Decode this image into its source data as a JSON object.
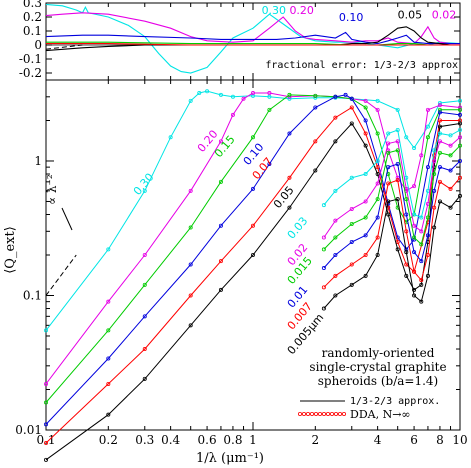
{
  "chart_data": [
    {
      "type": "line",
      "title": "",
      "xscale": "log",
      "xlim": [
        0.1,
        10
      ],
      "ylim": [
        -0.25,
        0.3
      ],
      "yticks": [
        0.3,
        0.2,
        0.1,
        0,
        -0.1,
        -0.2
      ],
      "ytick_labels": [
        "0.3",
        "0.2",
        "0.1",
        "0",
        "-0.1",
        "-0.2"
      ],
      "annotation": "fractional error: 1/3-2/3 approx",
      "labels": [
        {
          "text": "0.30",
          "color": "#00e5e5",
          "x": 1.1,
          "y": 0.22
        },
        {
          "text": "0.20",
          "color": "#e600e6",
          "x": 1.5,
          "y": 0.22
        },
        {
          "text": "0.10",
          "color": "#0000dd",
          "x": 2.6,
          "y": 0.17
        },
        {
          "text": "0.05",
          "color": "#000000",
          "x": 5.0,
          "y": 0.19
        },
        {
          "text": "0.02",
          "color": "#e600e6",
          "x": 7.3,
          "y": 0.19
        }
      ],
      "series": [
        {
          "color": "#00e5e5",
          "x": [
            0.1,
            0.12,
            0.14,
            0.15,
            0.155,
            0.16,
            0.2,
            0.25,
            0.3,
            0.35,
            0.4,
            0.45,
            0.5,
            0.6,
            0.7,
            0.8,
            1,
            1.2,
            1.4,
            1.7,
            2,
            2.5,
            3,
            3.5,
            4,
            5,
            6,
            7,
            8,
            10
          ],
          "y": [
            0.29,
            0.28,
            0.25,
            0.23,
            0.27,
            0.23,
            0.2,
            0.14,
            0.06,
            -0.06,
            -0.15,
            -0.19,
            -0.2,
            -0.16,
            -0.05,
            0.05,
            0.12,
            0.22,
            0.15,
            0.06,
            0.03,
            0.02,
            0.02,
            0.01,
            0,
            -0.02,
            0.01,
            0,
            0.02,
            0.01
          ]
        },
        {
          "color": "#e600e6",
          "x": [
            0.1,
            0.12,
            0.15,
            0.2,
            0.3,
            0.4,
            0.5,
            0.6,
            0.8,
            1,
            1.2,
            1.4,
            1.6,
            1.8,
            2,
            2.5,
            3,
            3.5,
            4,
            4.5,
            5,
            6,
            6.5,
            7,
            7.5,
            8,
            9,
            10
          ],
          "y": [
            0.21,
            0.22,
            0.23,
            0.22,
            0.17,
            0.12,
            0.06,
            0.03,
            0.02,
            0.03,
            0.12,
            0.2,
            0.1,
            0.05,
            0.04,
            0.03,
            0.02,
            0.03,
            0.03,
            0.05,
            0.02,
            0.01,
            0.06,
            0.13,
            0.05,
            0.02,
            0.01,
            0.01
          ]
        },
        {
          "color": "#0000dd",
          "x": [
            0.1,
            0.15,
            0.2,
            0.3,
            0.5,
            0.7,
            1,
            1.3,
            1.6,
            2,
            2.5,
            2.8,
            3,
            3.5,
            4,
            4.5,
            5,
            5.5,
            6,
            7,
            8,
            10
          ],
          "y": [
            0.06,
            0.07,
            0.07,
            0.06,
            0.05,
            0.04,
            0.04,
            0.04,
            0.05,
            0.07,
            0.05,
            0.09,
            0.04,
            0.02,
            0.01,
            0.03,
            0.05,
            0.07,
            0.02,
            0.01,
            0.01,
            0.01
          ]
        },
        {
          "color": "#000000",
          "x": [
            0.1,
            0.15,
            0.2,
            0.3,
            0.5,
            1,
            1.5,
            2,
            2.5,
            3,
            3.5,
            4,
            4.5,
            5,
            5.5,
            6,
            6.5,
            7,
            8,
            9,
            10
          ],
          "y": [
            -0.04,
            -0.02,
            -0.01,
            0,
            0,
            0,
            0,
            0,
            0,
            0.01,
            0.01,
            0.02,
            0.07,
            0.12,
            0.13,
            0.1,
            0.05,
            0.02,
            0.01,
            0,
            0
          ]
        },
        {
          "color": "#00cc00",
          "x": [
            0.1,
            0.2,
            0.5,
            1,
            2,
            3,
            4,
            5,
            6,
            7,
            8,
            10
          ],
          "y": [
            0.02,
            0.02,
            0.01,
            0.01,
            0.01,
            0,
            0,
            0.01,
            0.01,
            0,
            0,
            0
          ]
        },
        {
          "color": "#ff0000",
          "x": [
            0.1,
            0.2,
            0.5,
            1,
            2,
            3,
            4,
            5,
            6,
            7,
            8,
            10
          ],
          "y": [
            0.01,
            0.01,
            0,
            0,
            0,
            0,
            0,
            0,
            0,
            0,
            0,
            0
          ]
        }
      ],
      "dashed_zero": {
        "x": [
          0.1,
          0.15
        ],
        "y": [
          -0.03,
          0
        ]
      }
    },
    {
      "type": "line",
      "xscale": "log",
      "yscale": "log",
      "xlim": [
        0.1,
        10
      ],
      "ylim": [
        0.01,
        4
      ],
      "xlabel": "1/λ (μm⁻¹)",
      "ylabel": "⟨Q_ext⟩",
      "xticks": [
        0.1,
        0.2,
        0.4,
        0.6,
        0.8,
        1,
        2,
        4,
        6,
        8,
        10
      ],
      "xtick_labels": [
        "0.1",
        "0.2",
        "0.4",
        "0.6",
        "0.8",
        "1",
        "2",
        "4",
        "6",
        "8",
        "10"
      ],
      "xtick_labels_extra": [
        "0.3"
      ],
      "yticks": [
        0.01,
        0.1,
        1
      ],
      "ytick_labels": [
        "0.01",
        "0.1",
        "1"
      ],
      "legend_title": [
        "randomly-oriented",
        "single-crystal graphite",
        "spheroids (b/a=1.4)"
      ],
      "legend_entries": [
        "1/3-2/3 approx.",
        "DDA, N→∞"
      ],
      "legend_dda_color": "#ff0000",
      "slope_label": "∝ λ⁻²",
      "series": [
        {
          "name": "0.30",
          "color": "#00e5e5",
          "x": [
            0.1,
            0.2,
            0.3,
            0.4,
            0.5,
            0.55,
            0.6,
            0.7,
            0.8,
            1,
            1.2,
            1.5,
            2,
            2.5,
            3,
            4,
            5,
            5.5,
            6,
            7,
            8,
            10
          ],
          "y": [
            0.055,
            0.22,
            0.6,
            1.5,
            2.8,
            3.2,
            3.3,
            3.1,
            3.0,
            3.05,
            3.0,
            2.9,
            2.95,
            2.95,
            2.9,
            2.8,
            2.4,
            1.5,
            1.25,
            1.8,
            2.7,
            2.8
          ]
        },
        {
          "name": "0.20",
          "color": "#e600e6",
          "x": [
            0.1,
            0.2,
            0.3,
            0.5,
            0.7,
            0.8,
            0.9,
            1,
            1.2,
            1.5,
            2,
            2.5,
            3,
            3.5,
            4,
            4.5,
            5,
            5.5,
            6,
            6.5,
            7,
            8,
            10
          ],
          "y": [
            0.022,
            0.09,
            0.2,
            0.6,
            1.4,
            2.2,
            2.9,
            3.2,
            3.2,
            3.0,
            3.05,
            3.0,
            2.9,
            2.8,
            2.4,
            1.2,
            0.75,
            0.6,
            0.65,
            1.1,
            2.4,
            2.6,
            2.5
          ]
        },
        {
          "name": "0.15",
          "color": "#00cc00",
          "x": [
            0.1,
            0.2,
            0.3,
            0.5,
            0.7,
            1,
            1.2,
            1.5,
            2,
            2.5,
            3,
            3.5,
            4,
            4.5,
            5,
            5.5,
            6,
            7,
            8,
            10
          ],
          "y": [
            0.016,
            0.055,
            0.12,
            0.32,
            0.7,
            1.5,
            2.4,
            3.1,
            3.05,
            3.0,
            2.9,
            2.5,
            1.6,
            0.8,
            0.45,
            0.35,
            0.4,
            1.5,
            2.4,
            2.4
          ]
        },
        {
          "name": "0.10",
          "color": "#0000dd",
          "x": [
            0.1,
            0.2,
            0.3,
            0.5,
            0.7,
            1,
            1.2,
            1.5,
            2,
            2.5,
            2.8,
            3,
            3.5,
            4,
            4.5,
            5,
            5.5,
            6,
            7,
            8,
            10
          ],
          "y": [
            0.011,
            0.034,
            0.07,
            0.17,
            0.33,
            0.62,
            0.95,
            1.6,
            2.5,
            3.0,
            3.1,
            2.9,
            2.0,
            1.0,
            0.48,
            0.27,
            0.22,
            0.26,
            0.9,
            2.3,
            2.2
          ]
        },
        {
          "name": "0.07",
          "color": "#ff0000",
          "x": [
            0.1,
            0.2,
            0.3,
            0.5,
            0.7,
            1,
            1.5,
            2,
            2.5,
            3,
            3.5,
            4,
            4.5,
            5,
            5.5,
            6,
            7,
            7.5,
            8,
            10
          ],
          "y": [
            0.008,
            0.022,
            0.04,
            0.1,
            0.18,
            0.33,
            0.75,
            1.4,
            2.1,
            2.5,
            1.6,
            0.9,
            0.45,
            0.25,
            0.17,
            0.15,
            0.35,
            1.1,
            2.0,
            2.0
          ]
        },
        {
          "name": "0.05",
          "color": "#000000",
          "x": [
            0.1,
            0.2,
            0.3,
            0.5,
            0.7,
            1,
            1.5,
            2,
            2.5,
            3,
            3.5,
            4,
            4.5,
            5,
            5.5,
            6,
            6.5,
            7,
            7.5,
            8,
            10
          ],
          "y": [
            0.006,
            0.013,
            0.024,
            0.06,
            0.11,
            0.2,
            0.45,
            0.85,
            1.4,
            1.9,
            1.3,
            0.8,
            0.4,
            0.22,
            0.14,
            0.11,
            0.12,
            0.25,
            0.9,
            1.8,
            1.9
          ]
        },
        {
          "name": "0.03",
          "color": "#00e5e5",
          "x": [
            2.2,
            2.5,
            3,
            3.5,
            4,
            4.5,
            5,
            5.5,
            6,
            6.5,
            7,
            7.5,
            8,
            9,
            10
          ],
          "y": [
            0.47,
            0.6,
            0.75,
            0.8,
            1.0,
            1.6,
            1.7,
            0.75,
            0.4,
            0.38,
            0.6,
            1.2,
            1.6,
            1.55,
            1.7
          ]
        },
        {
          "name": "0.02",
          "color": "#e600e6",
          "x": [
            2.2,
            2.5,
            3,
            3.5,
            4,
            4.5,
            5,
            5.5,
            6,
            6.5,
            7,
            7.5,
            8,
            9,
            10
          ],
          "y": [
            0.27,
            0.36,
            0.44,
            0.5,
            0.68,
            1.35,
            1.4,
            0.62,
            0.33,
            0.3,
            0.48,
            1.0,
            1.4,
            1.3,
            1.5
          ]
        },
        {
          "name": "0.015",
          "color": "#00cc00",
          "x": [
            2.2,
            2.5,
            3,
            3.5,
            4,
            4.5,
            5,
            5.5,
            6,
            6.5,
            7,
            7.5,
            8,
            9,
            10
          ],
          "y": [
            0.22,
            0.27,
            0.34,
            0.38,
            0.52,
            1.15,
            1.2,
            0.52,
            0.27,
            0.24,
            0.38,
            0.8,
            1.15,
            1.1,
            1.3
          ]
        },
        {
          "name": "0.01",
          "color": "#0000dd",
          "x": [
            2.2,
            2.5,
            3,
            3.5,
            4,
            4.5,
            5,
            5.5,
            6,
            6.5,
            7,
            7.5,
            8,
            9,
            10
          ],
          "y": [
            0.16,
            0.2,
            0.25,
            0.28,
            0.38,
            0.9,
            0.95,
            0.4,
            0.21,
            0.18,
            0.28,
            0.6,
            0.9,
            0.85,
            1.0
          ]
        },
        {
          "name": "0.007",
          "color": "#ff0000",
          "x": [
            2.2,
            2.5,
            3,
            3.5,
            4,
            4.5,
            5,
            5.5,
            6,
            6.5,
            7,
            7.5,
            8,
            9,
            10
          ],
          "y": [
            0.115,
            0.14,
            0.17,
            0.2,
            0.27,
            0.68,
            0.72,
            0.3,
            0.15,
            0.13,
            0.2,
            0.45,
            0.7,
            0.62,
            0.75
          ]
        },
        {
          "name": "0.005μm",
          "color": "#000000",
          "x": [
            2.2,
            2.5,
            3,
            3.5,
            4,
            4.5,
            5,
            5.5,
            6,
            6.5,
            7,
            7.5,
            8,
            9,
            10
          ],
          "y": [
            0.08,
            0.1,
            0.12,
            0.14,
            0.2,
            0.5,
            0.52,
            0.21,
            0.1,
            0.09,
            0.14,
            0.32,
            0.5,
            0.45,
            0.55
          ]
        }
      ],
      "labels": [
        {
          "text": "0.30",
          "color": "#00e5e5",
          "x": 0.28,
          "y": 0.55,
          "rot": -50
        },
        {
          "text": "0.20",
          "color": "#e600e6",
          "x": 0.57,
          "y": 1.15,
          "rot": -50
        },
        {
          "text": "0.15",
          "color": "#00cc00",
          "x": 0.69,
          "y": 1.05,
          "rot": -50
        },
        {
          "text": "0.10",
          "color": "#0000dd",
          "x": 0.95,
          "y": 0.92,
          "rot": -50
        },
        {
          "text": "0.07",
          "color": "#ff0000",
          "x": 1.05,
          "y": 0.72,
          "rot": -50
        },
        {
          "text": "0.05",
          "color": "#000000",
          "x": 1.33,
          "y": 0.44,
          "rot": -50
        },
        {
          "text": "0.03",
          "color": "#00e5e5",
          "x": 1.55,
          "y": 0.26,
          "rot": -50
        },
        {
          "text": "0.02",
          "color": "#e600e6",
          "x": 1.55,
          "y": 0.165,
          "rot": -50
        },
        {
          "text": "0.015",
          "color": "#00cc00",
          "x": 1.55,
          "y": 0.12,
          "rot": -50
        },
        {
          "text": "0.01",
          "color": "#0000dd",
          "x": 1.55,
          "y": 0.08,
          "rot": -50
        },
        {
          "text": "0.007",
          "color": "#ff0000",
          "x": 1.55,
          "y": 0.055,
          "rot": -50
        },
        {
          "text": "0.005μm",
          "color": "#000000",
          "x": 1.55,
          "y": 0.036,
          "rot": -50
        }
      ]
    }
  ]
}
